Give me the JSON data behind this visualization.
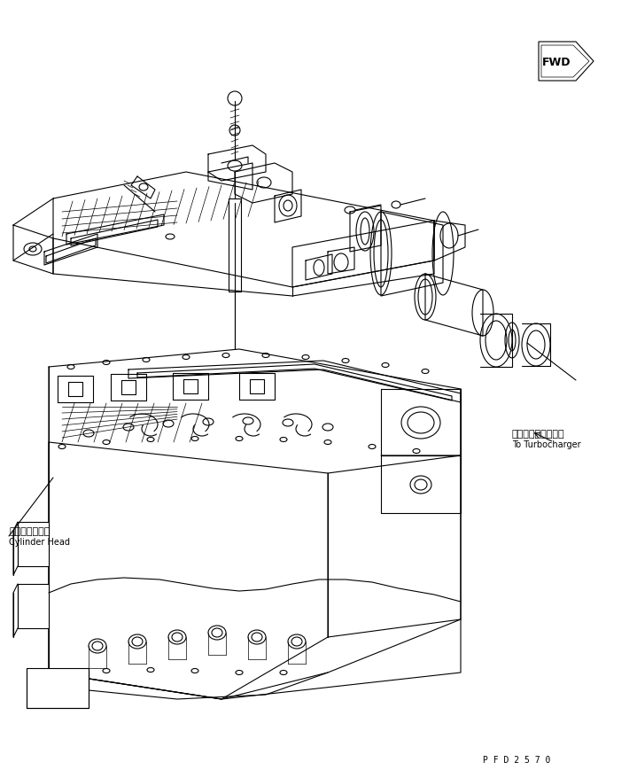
{
  "background_color": "#ffffff",
  "line_color": "#000000",
  "lw": 0.8,
  "lw_thin": 0.5,
  "lw_thick": 1.2,
  "fig_width": 7.19,
  "fig_height": 8.7,
  "label_cylinder_head_jp": "シリンダヘッド",
  "label_cylinder_head_en": "Cylinder Head",
  "label_turbo_jp": "ターボチャージャヘ",
  "label_turbo_en": "To Turbocharger",
  "label_fwd": "FWD",
  "label_pfd": "P F D 2 5 7 0"
}
